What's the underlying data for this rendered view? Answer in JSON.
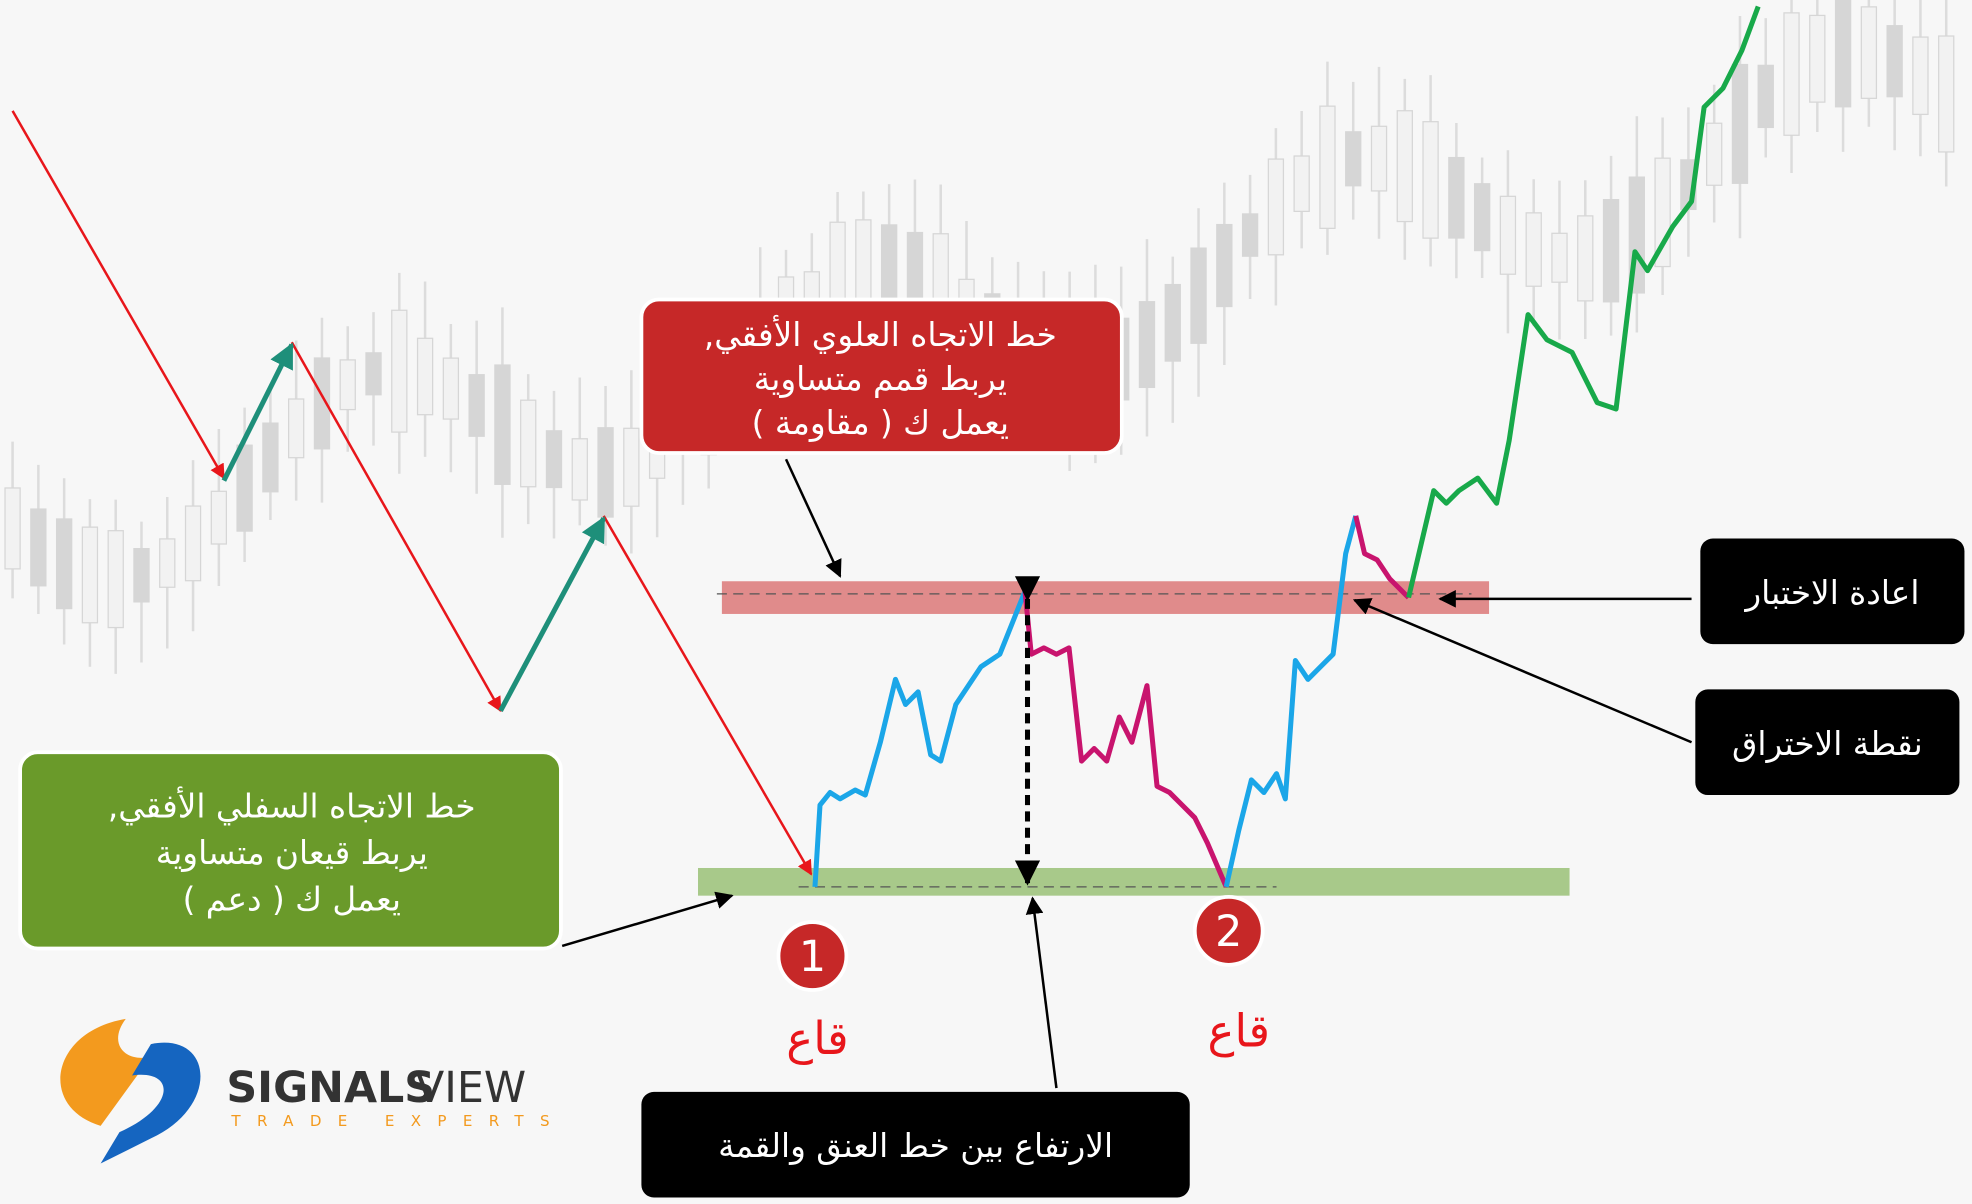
{
  "resistance_box": {
    "lines": [
      "خط الاتجاه العلوي الأفقي,",
      "يربط قمم متساوية",
      "يعمل ك ( مقاومة )"
    ]
  },
  "support_box": {
    "lines": [
      "خط الاتجاه السفلي الأفقي,",
      "يربط قيعان متساوية",
      "يعمل ك ( دعم )"
    ]
  },
  "bottoms": [
    {
      "number": "1",
      "label": "قاع"
    },
    {
      "number": "2",
      "label": "قاع"
    }
  ],
  "height_label": "الارتفاع بين خط العنق والقمة",
  "retest_label": "اعادة الاختبار",
  "breakout_label": "نقطة الاختراق",
  "logo": {
    "brand_bold": "SIGNALS",
    "brand_light": "VIEW",
    "tagline": "TRADE EXPERTS"
  }
}
